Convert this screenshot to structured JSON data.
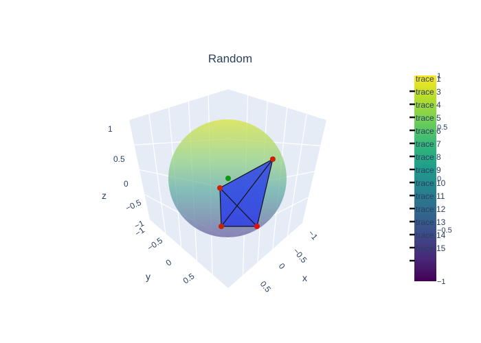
{
  "chart_data": {
    "type": "scatter3d",
    "title": "Random",
    "scene": {
      "x": {
        "title": "x",
        "ticks": [
          "−1",
          "−0.5",
          "0",
          "0.5"
        ],
        "range": [
          -1,
          1
        ]
      },
      "y": {
        "title": "y",
        "ticks": [
          "−1",
          "−0.5",
          "0",
          "0.5"
        ],
        "range": [
          -1,
          1
        ]
      },
      "z": {
        "title": "z",
        "ticks": [
          "1",
          "0.5",
          "0",
          "−0.5",
          "−1"
        ],
        "range": [
          -1,
          1
        ]
      },
      "background": "#e5ecf6",
      "grid": true
    },
    "sphere": {
      "radius": 1,
      "colorscale": "Viridis",
      "opacity": 0.5
    },
    "points": {
      "vertices_color": "#cc0000",
      "center_color": "#119911",
      "count_red": 4,
      "count_green": 1
    },
    "polygon": {
      "fill": "#2233ee",
      "edge_color": "#111111"
    },
    "colorbar": {
      "min": -1,
      "max": 1,
      "ticks": [
        "1",
        "0.5",
        "0",
        "−0.5",
        "−1"
      ],
      "colors": [
        "#fde725",
        "#b5de2b",
        "#6ece58",
        "#35b779",
        "#1f9e89",
        "#26828e",
        "#31688e",
        "#3e4989",
        "#482878",
        "#440154"
      ]
    },
    "legend": {
      "placement": "right",
      "entries": [
        "trace 1",
        "trace 3",
        "trace 4",
        "trace 5",
        "trace 6",
        "trace 7",
        "trace 8",
        "trace 9",
        "trace 10",
        "trace 11",
        "trace 12",
        "trace 13",
        "trace 14",
        "trace 15"
      ]
    }
  }
}
